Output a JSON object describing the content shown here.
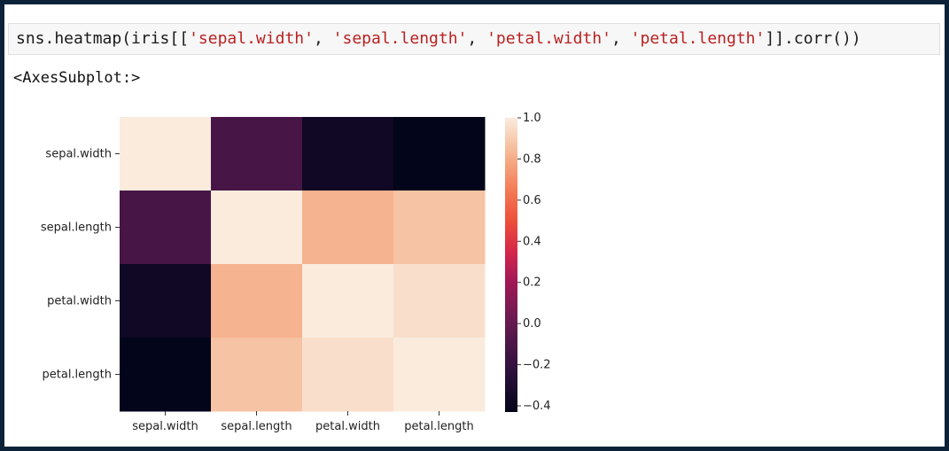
{
  "code_cell": {
    "parts": [
      {
        "t": "sns.heatmap(iris[[",
        "s": false
      },
      {
        "t": "'sepal.width'",
        "s": true
      },
      {
        "t": ", ",
        "s": false
      },
      {
        "t": "'sepal.length'",
        "s": true
      },
      {
        "t": ", ",
        "s": false
      },
      {
        "t": "'petal.width'",
        "s": true
      },
      {
        "t": ", ",
        "s": false
      },
      {
        "t": "'petal.length'",
        "s": true
      },
      {
        "t": "]].corr())",
        "s": false
      }
    ]
  },
  "output": {
    "text": "<AxesSubplot:>"
  },
  "chart_data": {
    "type": "heatmap",
    "colormap": "rocket",
    "x_labels": [
      "sepal.width",
      "sepal.length",
      "petal.width",
      "petal.length"
    ],
    "y_labels": [
      "sepal.width",
      "sepal.length",
      "petal.width",
      "petal.length"
    ],
    "values": [
      [
        1.0,
        -0.12,
        -0.37,
        -0.43
      ],
      [
        -0.12,
        1.0,
        0.82,
        0.87
      ],
      [
        -0.37,
        0.82,
        1.0,
        0.96
      ],
      [
        -0.43,
        0.87,
        0.96,
        1.0
      ]
    ],
    "colorbar": {
      "ticks": [
        "1.0",
        "0.8",
        "0.6",
        "0.4",
        "0.2",
        "0.0",
        "−0.2",
        "−0.4"
      ],
      "tick_values": [
        1.0,
        0.8,
        0.6,
        0.4,
        0.2,
        0.0,
        -0.2,
        -0.4
      ],
      "range": [
        -0.43,
        1.0
      ]
    }
  }
}
